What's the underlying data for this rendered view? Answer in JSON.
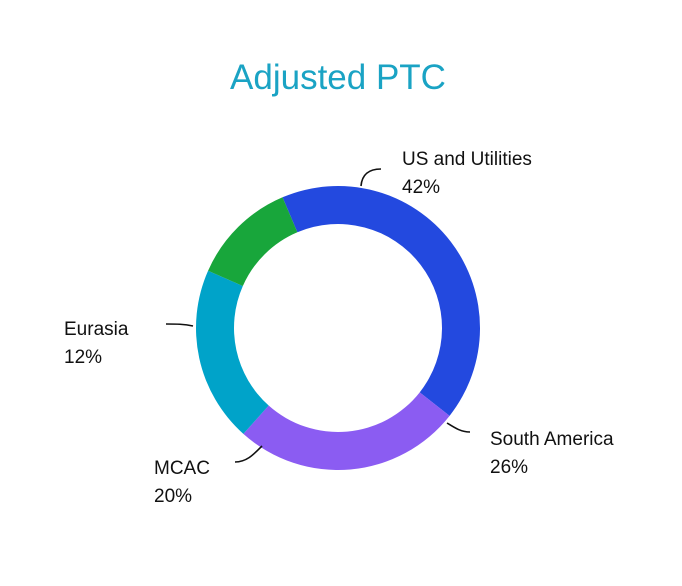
{
  "chart_data": {
    "type": "pie",
    "title": "Adjusted PTC",
    "categories": [
      "US and Utilities",
      "South America",
      "MCAC",
      "Eurasia"
    ],
    "values": [
      42,
      26,
      20,
      12
    ],
    "value_labels": [
      "42%",
      "26%",
      "20%",
      "12%"
    ],
    "colors": [
      "#2349DF",
      "#8B5CF2",
      "#00A3C9",
      "#18A63B"
    ],
    "legend": "none"
  }
}
